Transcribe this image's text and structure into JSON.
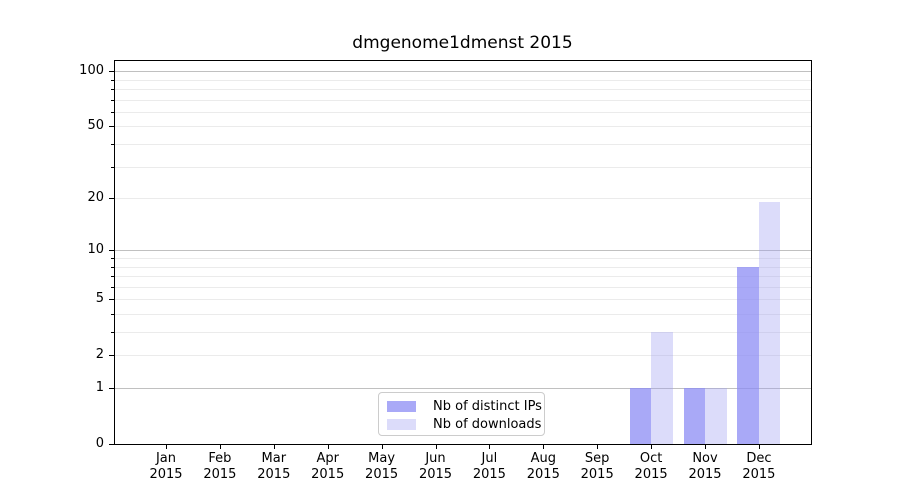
{
  "title": "dmgenome1dmenst 2015",
  "chart_data": {
    "type": "bar",
    "title": "dmgenome1dmenst 2015",
    "x": {
      "year": "2015",
      "months": [
        "Jan",
        "Feb",
        "Mar",
        "Apr",
        "May",
        "Jun",
        "Jul",
        "Aug",
        "Sep",
        "Oct",
        "Nov",
        "Dec"
      ]
    },
    "series": [
      {
        "name": "Nb of distinct IPs",
        "key": "distinct-ips",
        "color": "#a9a9f7",
        "bar_fill": "rgba(140,140,244,0.75)",
        "values": [
          0,
          0,
          0,
          0,
          0,
          0,
          0,
          0,
          0,
          1,
          1,
          8
        ]
      },
      {
        "name": "Nb of downloads",
        "key": "downloads",
        "color": "#dcdcfa",
        "bar_fill": "rgba(155,155,240,0.35)",
        "values": [
          0,
          0,
          0,
          0,
          0,
          0,
          0,
          0,
          0,
          3,
          1,
          19
        ]
      }
    ],
    "y_axis": {
      "scale": "log1p",
      "ylim": [
        0,
        115
      ],
      "tick_labels": [
        0,
        1,
        2,
        5,
        10,
        20,
        50,
        100
      ],
      "major_grid": [
        1,
        10,
        100
      ],
      "minor_grid": [
        2,
        3,
        4,
        5,
        6,
        7,
        8,
        9,
        20,
        30,
        40,
        50,
        60,
        70,
        80,
        90
      ]
    },
    "legend": {
      "position": "lower-center"
    },
    "style": {
      "background": "#ffffff",
      "axis_color": "#000000",
      "major_grid_color": "#c0c0c0",
      "minor_grid_color": "#ebebeb",
      "legend_border": "#cccccc"
    }
  }
}
